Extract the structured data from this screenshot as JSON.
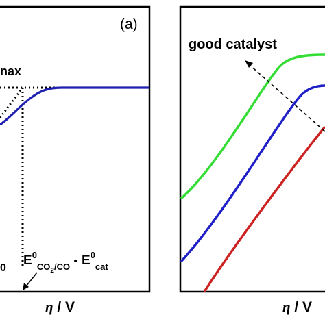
{
  "left_panel": {
    "panel_label": "(a)",
    "max_label_fragment": "nax",
    "left_axis_fragment": "0",
    "potential_label": {
      "E1": "E",
      "sup1": "0",
      "sub1": "CO",
      "sub1_digit": "2",
      "sub1_rest": "/CO",
      "minus": " - ",
      "E2": "E",
      "sup2": "0",
      "sub2": "cat"
    },
    "x_axis_label": {
      "symbol": "η",
      "unit": " / V"
    },
    "colors": {
      "curve": "#1f1fb0",
      "dotted": "#000000"
    }
  },
  "right_panel": {
    "annotation": "good catalyst",
    "x_axis_label": {
      "symbol": "η",
      "unit": " / V"
    },
    "colors": {
      "green": "#33dd33",
      "blue": "#2020c8",
      "red": "#cc2222"
    }
  }
}
